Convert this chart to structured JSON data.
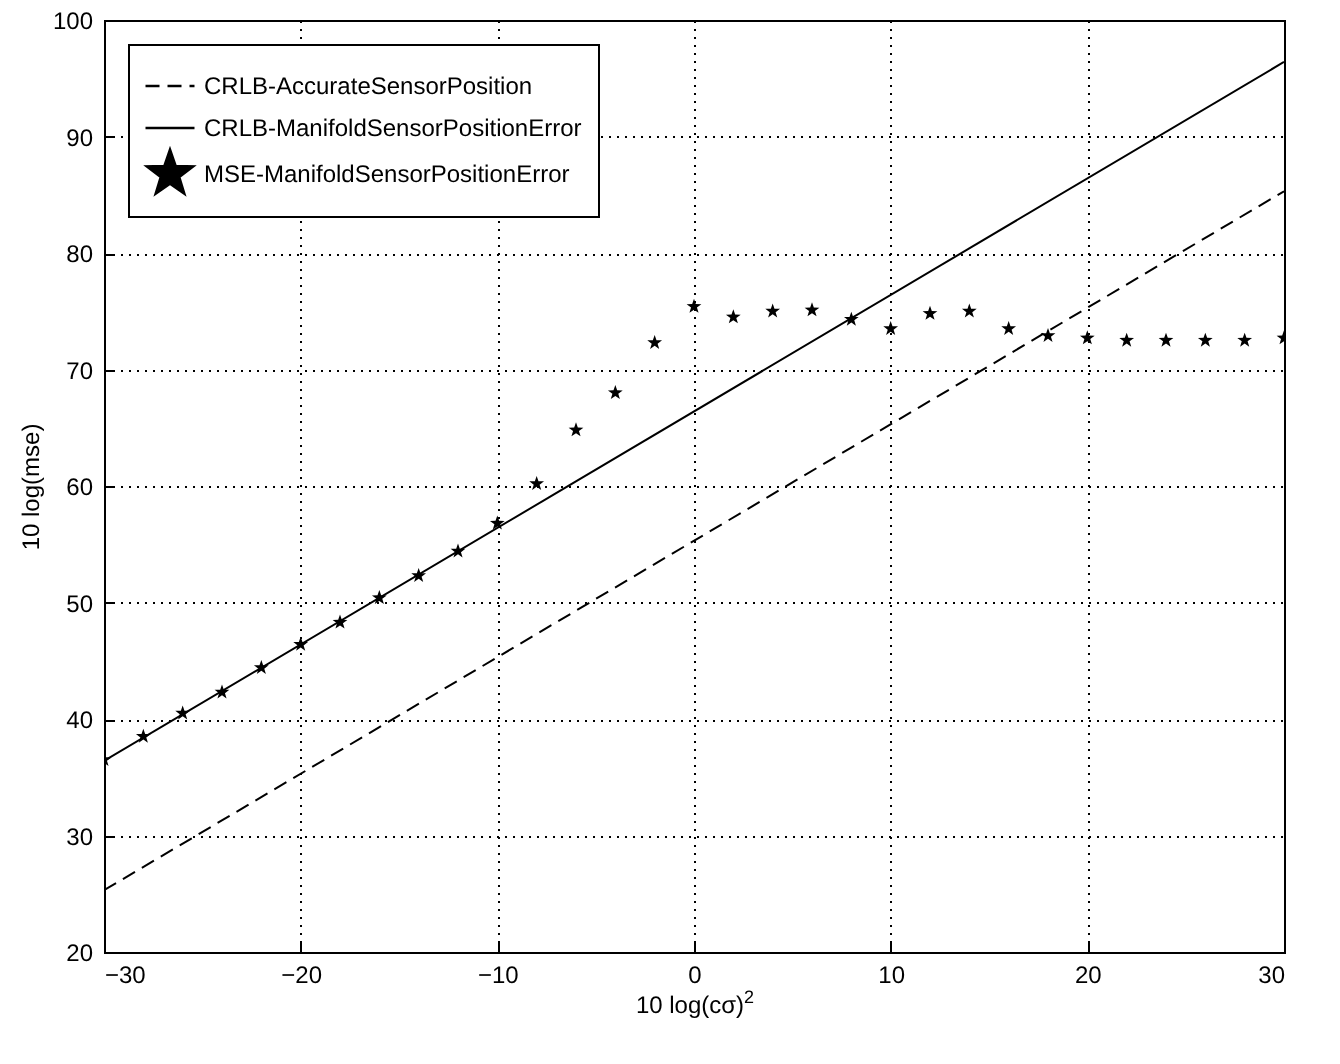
{
  "chart_data": {
    "type": "line",
    "xlabel": "10 log(cσ)$^{2}$",
    "ylabel": "10 log(mse)",
    "xlim": [
      -30,
      30
    ],
    "xticks": [
      -30,
      -20,
      -10,
      0,
      10,
      20,
      30
    ],
    "ylim": [
      20,
      100
    ],
    "yticks": [
      20,
      30,
      40,
      50,
      60,
      70,
      80,
      90,
      100
    ],
    "grid": true,
    "legend": "top left",
    "series": [
      {
        "name": "CRLB-AccurateSensorPosition",
        "line_style": "dashed",
        "color": "#000000",
        "x": [
          -30,
          30
        ],
        "values": [
          25.3,
          85.3
        ]
      },
      {
        "name": "CRLB-ManifoldSensorPositionError",
        "line_style": "solid",
        "color": "#000000",
        "x": [
          -30,
          30
        ],
        "values": [
          36.4,
          96.4
        ]
      },
      {
        "name": "MSE-ManifoldSensorPositionError",
        "type": "scatter",
        "marker": "star",
        "color": "#000000",
        "x": [
          -30,
          -28,
          -26,
          -24,
          -22,
          -20,
          -18,
          -16,
          -14,
          -12,
          -10,
          -8,
          -6,
          -4,
          -2,
          0,
          2,
          4,
          6,
          8,
          10,
          12,
          14,
          16,
          18,
          20,
          22,
          24,
          26,
          28,
          30
        ],
        "values": [
          36.5,
          38.5,
          40.5,
          42.3,
          44.4,
          46.4,
          48.3,
          50.4,
          52.3,
          54.4,
          56.8,
          60.2,
          64.8,
          68.0,
          72.3,
          75.4,
          74.5,
          75.0,
          75.1,
          74.3,
          73.5,
          74.8,
          75.0,
          73.5,
          72.9,
          72.7,
          72.5,
          72.5,
          72.5,
          72.5,
          72.7
        ]
      }
    ]
  }
}
